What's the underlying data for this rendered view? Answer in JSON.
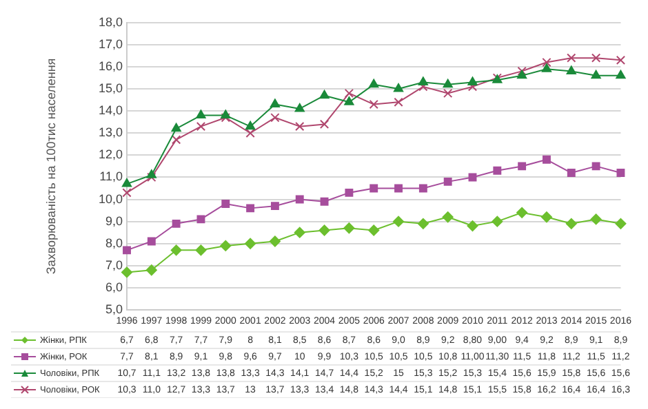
{
  "chart_data": {
    "type": "line",
    "ylabel": "Захворюваність на 100тис населення",
    "categories": [
      "1996",
      "1997",
      "1998",
      "1999",
      "2000",
      "2001",
      "2002",
      "2003",
      "2004",
      "2005",
      "2006",
      "2007",
      "2008",
      "2009",
      "2010",
      "2011",
      "2012",
      "2013",
      "2014",
      "2015",
      "2016"
    ],
    "ylim": [
      5,
      18
    ],
    "yticks": [
      {
        "value": 5,
        "label": "5,0"
      },
      {
        "value": 6,
        "label": "6,0"
      },
      {
        "value": 7,
        "label": "7,0"
      },
      {
        "value": 8,
        "label": "8,0"
      },
      {
        "value": 9,
        "label": "9,0"
      },
      {
        "value": 10,
        "label": "10,0"
      },
      {
        "value": 11,
        "label": "11,0"
      },
      {
        "value": 12,
        "label": "12,0"
      },
      {
        "value": 13,
        "label": "13,0"
      },
      {
        "value": 14,
        "label": "14,0"
      },
      {
        "value": 15,
        "label": "15,0"
      },
      {
        "value": 16,
        "label": "16,0"
      },
      {
        "value": 17,
        "label": "17,0"
      },
      {
        "value": 18,
        "label": "18,0"
      }
    ],
    "grid": "y",
    "legend": "bottom",
    "series": [
      {
        "name": "Жінки, РПК",
        "color": "#6cbf2e",
        "marker": "diamond",
        "values": [
          6.7,
          6.8,
          7.7,
          7.7,
          7.9,
          8,
          8.1,
          8.5,
          8.6,
          8.7,
          8.6,
          9.0,
          8.9,
          9.2,
          8.8,
          9.0,
          9.4,
          9.2,
          8.9,
          9.1,
          8.9
        ],
        "value_labels": [
          "6,7",
          "6,8",
          "7,7",
          "7,7",
          "7,9",
          "8",
          "8,1",
          "8,5",
          "8,6",
          "8,7",
          "8,6",
          "9,0",
          "8,9",
          "9,2",
          "8,80",
          "9,00",
          "9,4",
          "9,2",
          "8,9",
          "9,1",
          "8,9"
        ]
      },
      {
        "name": "Жінки, РОК",
        "color": "#a64d9c",
        "marker": "square",
        "values": [
          7.7,
          8.1,
          8.9,
          9.1,
          9.8,
          9.6,
          9.7,
          10,
          9.9,
          10.3,
          10.5,
          10.5,
          10.5,
          10.8,
          11.0,
          11.3,
          11.5,
          11.8,
          11.2,
          11.5,
          11.2
        ],
        "value_labels": [
          "7,7",
          "8,1",
          "8,9",
          "9,1",
          "9,8",
          "9,6",
          "9,7",
          "10",
          "9,9",
          "10,3",
          "10,5",
          "10,5",
          "10,5",
          "10,8",
          "11,00",
          "11,30",
          "11,5",
          "11,8",
          "11,2",
          "11,5",
          "11,2"
        ]
      },
      {
        "name": "Чоловіки, РПК",
        "color": "#1a8a3a",
        "marker": "triangle",
        "values": [
          10.7,
          11.1,
          13.2,
          13.8,
          13.8,
          13.3,
          14.3,
          14.1,
          14.7,
          14.4,
          15.2,
          15,
          15.3,
          15.2,
          15.3,
          15.4,
          15.6,
          15.9,
          15.8,
          15.6,
          15.6
        ],
        "value_labels": [
          "10,7",
          "11,1",
          "13,2",
          "13,8",
          "13,8",
          "13,3",
          "14,3",
          "14,1",
          "14,7",
          "14,4",
          "15,2",
          "15",
          "15,3",
          "15,2",
          "15,3",
          "15,4",
          "15,6",
          "15,9",
          "15,8",
          "15,6",
          "15,6"
        ]
      },
      {
        "name": "Чоловіки, РОК",
        "color": "#b0476e",
        "marker": "cross",
        "values": [
          10.3,
          11.0,
          12.7,
          13.3,
          13.7,
          13,
          13.7,
          13.3,
          13.4,
          14.8,
          14.3,
          14.4,
          15.1,
          14.8,
          15.1,
          15.5,
          15.8,
          16.2,
          16.4,
          16.4,
          16.3
        ],
        "value_labels": [
          "10,3",
          "11,0",
          "12,7",
          "13,3",
          "13,7",
          "13",
          "13,7",
          "13,3",
          "13,4",
          "14,8",
          "14,3",
          "14,4",
          "15,1",
          "14,8",
          "15,1",
          "15,5",
          "15,8",
          "16,2",
          "16,4",
          "16,4",
          "16,3"
        ]
      }
    ]
  }
}
